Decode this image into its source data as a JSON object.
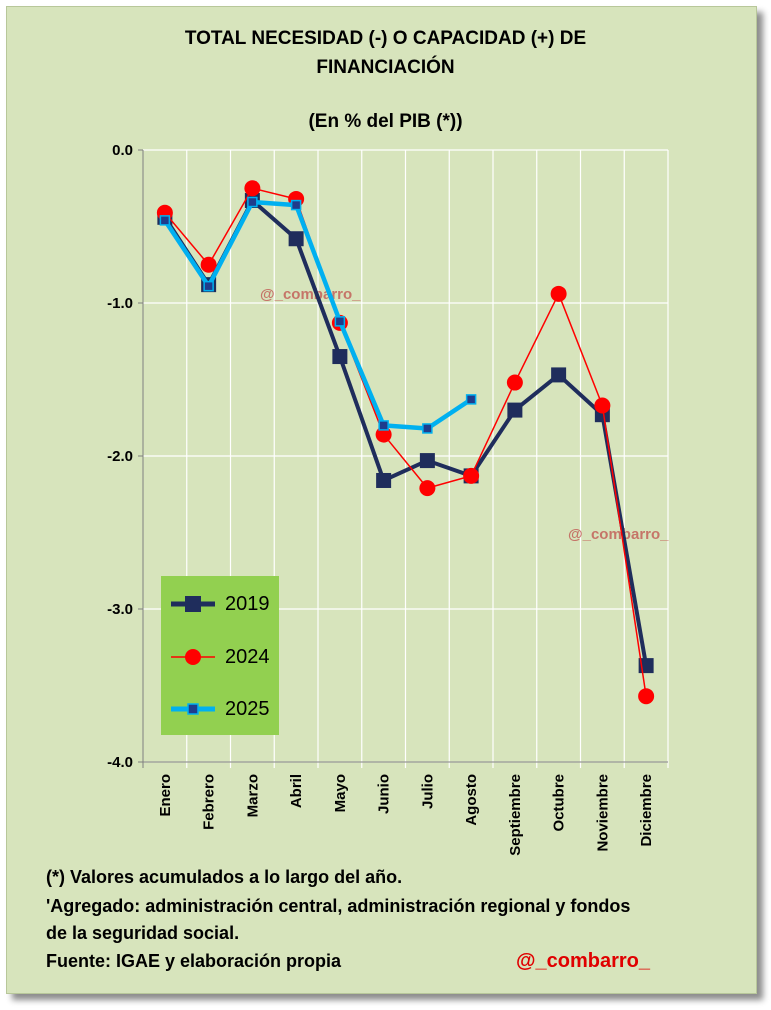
{
  "chart_data": {
    "type": "line",
    "title_line1": "TOTAL NECESIDAD (-) O CAPACIDAD (+) DE",
    "title_line2": "FINANCIACIÓN",
    "subtitle": "(En % del PIB (*))",
    "categories": [
      "Enero",
      "Febrero",
      "Marzo",
      "Abril",
      "Mayo",
      "Junio",
      "Julio",
      "Agosto",
      "Septiembre",
      "Octubre",
      "Noviembre",
      "Diciembre"
    ],
    "y_ticks": [
      "0.0",
      "-1.0",
      "-2.0",
      "-3.0",
      "-4.0"
    ],
    "ylim": [
      -4.0,
      0.0
    ],
    "grid": true,
    "legend_position": "bottom-left",
    "series": [
      {
        "name": "2019",
        "color": "#1f2d5c",
        "marker": "square",
        "values": [
          -0.44,
          -0.88,
          -0.33,
          -0.58,
          -1.35,
          -2.16,
          -2.03,
          -2.13,
          -1.7,
          -1.47,
          -1.73,
          -3.37
        ]
      },
      {
        "name": "2024",
        "color": "#ff0000",
        "marker": "circle",
        "values": [
          -0.41,
          -0.75,
          -0.25,
          -0.32,
          -1.13,
          -1.86,
          -2.21,
          -2.13,
          -1.52,
          -0.94,
          -1.67,
          -3.57
        ]
      },
      {
        "name": "2025",
        "color": "#00b0f0",
        "marker": "small-square",
        "values": [
          -0.46,
          -0.89,
          -0.34,
          -0.36,
          -1.12,
          -1.8,
          -1.82,
          -1.63,
          null,
          null,
          null,
          null
        ]
      }
    ]
  },
  "watermark_1": "@_combarro_",
  "watermark_2": "@_combarro_",
  "footnotes": {
    "line1": "(*) Valores acumulados a lo largo del año.",
    "line2": "'Agregado: administración central, administración regional y fondos",
    "line3": "de la seguridad social.",
    "line4": "Fuente: IGAE y elaboración propia"
  },
  "handle": "@_combarro_"
}
